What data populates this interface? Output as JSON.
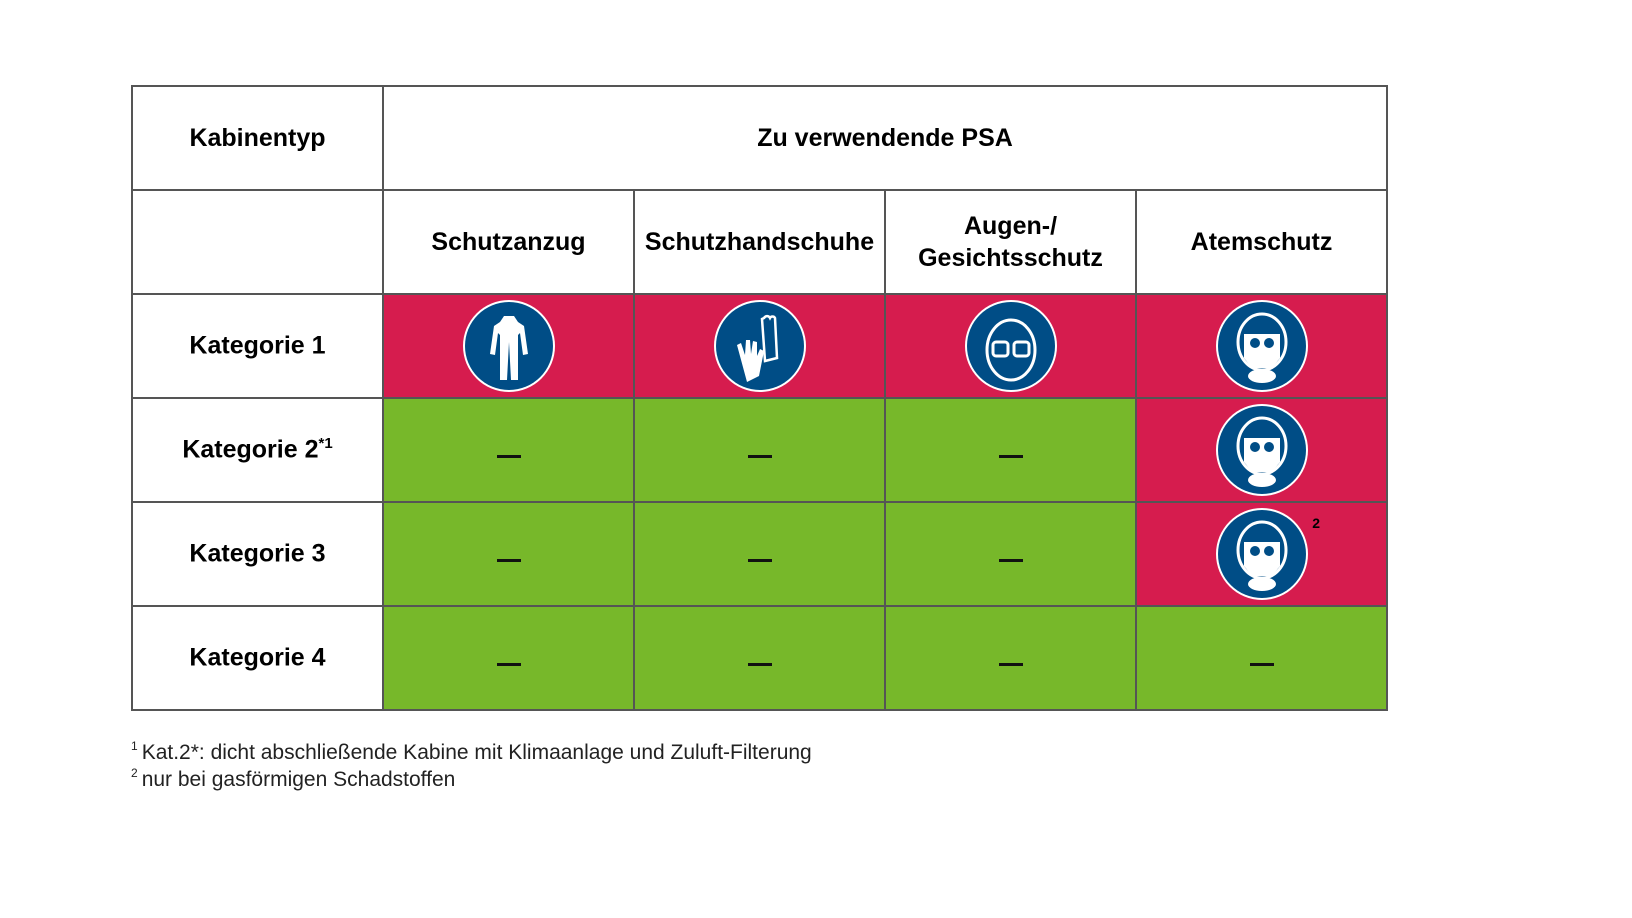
{
  "header": {
    "col0": "Kabinentyp",
    "group": "Zu verwendende PSA"
  },
  "columns": [
    "Schutzanzug",
    "Schutzhandschuhe",
    "Augen-/ Gesichtsschutz",
    "Atemschutz"
  ],
  "rows": [
    {
      "label": "Kategorie 1",
      "sup": "",
      "cells": [
        "required",
        "required",
        "required",
        "required"
      ]
    },
    {
      "label": "Kategorie 2",
      "sup": "*1",
      "cells": [
        "none",
        "none",
        "none",
        "required"
      ]
    },
    {
      "label": "Kategorie 3",
      "sup": "",
      "cells": [
        "none",
        "none",
        "none",
        "required"
      ],
      "atem_note": "2"
    },
    {
      "label": "Kategorie 4",
      "sup": "",
      "cells": [
        "none",
        "none",
        "none",
        "none"
      ]
    }
  ],
  "icons": [
    "protective-suit-icon",
    "gloves-icon",
    "eye-face-protection-icon",
    "respirator-icon"
  ],
  "colors": {
    "required": "#d61c4e",
    "none": "#77b82a",
    "icon": "#004d86"
  },
  "footnotes": [
    {
      "mark": "1",
      "text": "Kat.2*: dicht abschließende Kabine mit Klimaanlage und Zuluft-Filterung"
    },
    {
      "mark": "2",
      "text": "nur bei gasförmigen Schadstoffen"
    }
  ]
}
